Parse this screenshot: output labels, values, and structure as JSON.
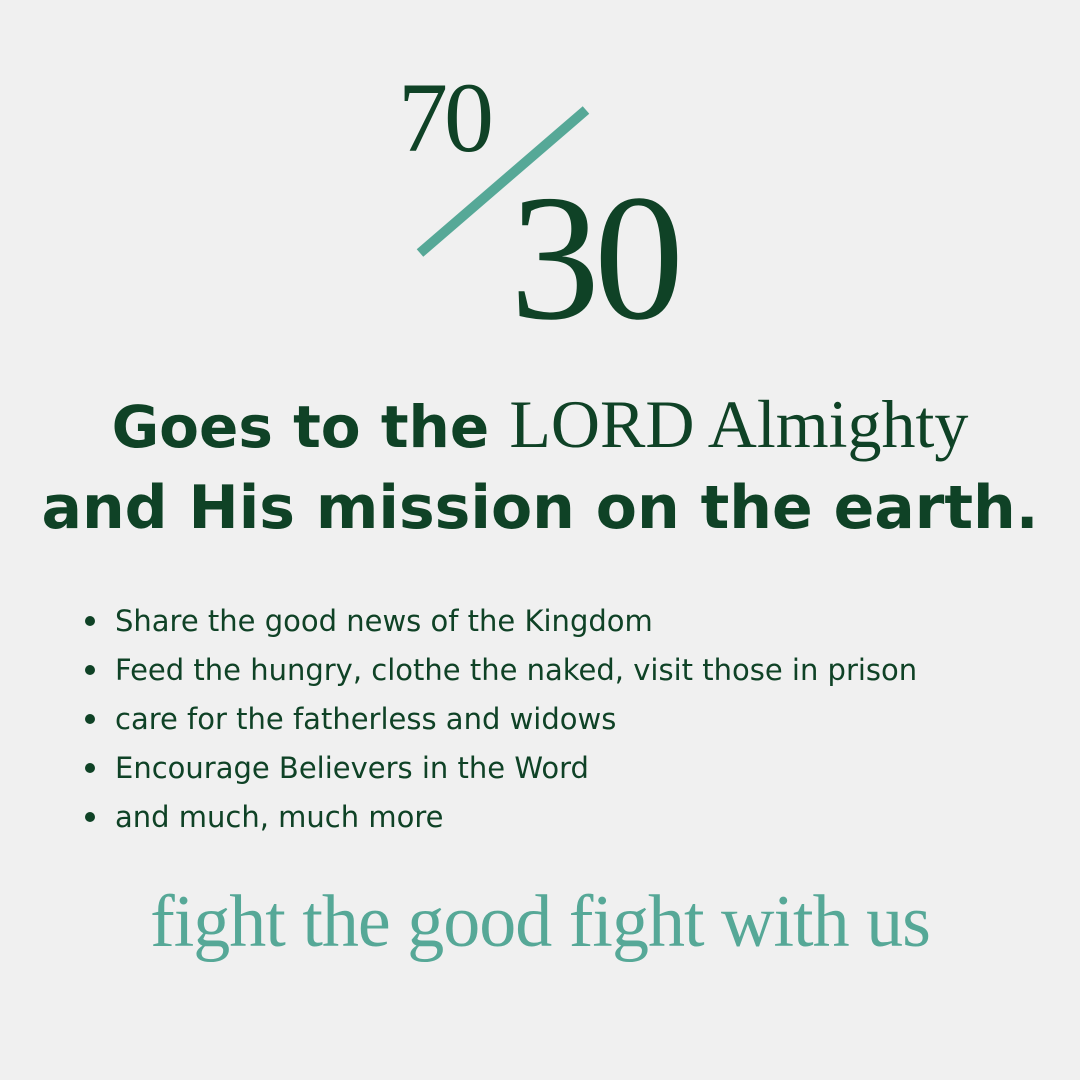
{
  "ratio": {
    "top": "70",
    "bottom": "30"
  },
  "heading": {
    "line1_bold": "Goes to the",
    "line1_serif": "LORD Almighty",
    "line2": "and His mission on the earth."
  },
  "bullets": [
    "Share the good news of the Kingdom",
    "Feed the hungry, clothe the naked, visit those in prison",
    "care for the fatherless and widows",
    "Encourage Believers in the Word",
    "and much, much more"
  ],
  "tagline": "fight the good fight with us",
  "colors": {
    "dark_green": "#0f4226",
    "teal": "#56a897",
    "background": "#f0f0f0"
  }
}
